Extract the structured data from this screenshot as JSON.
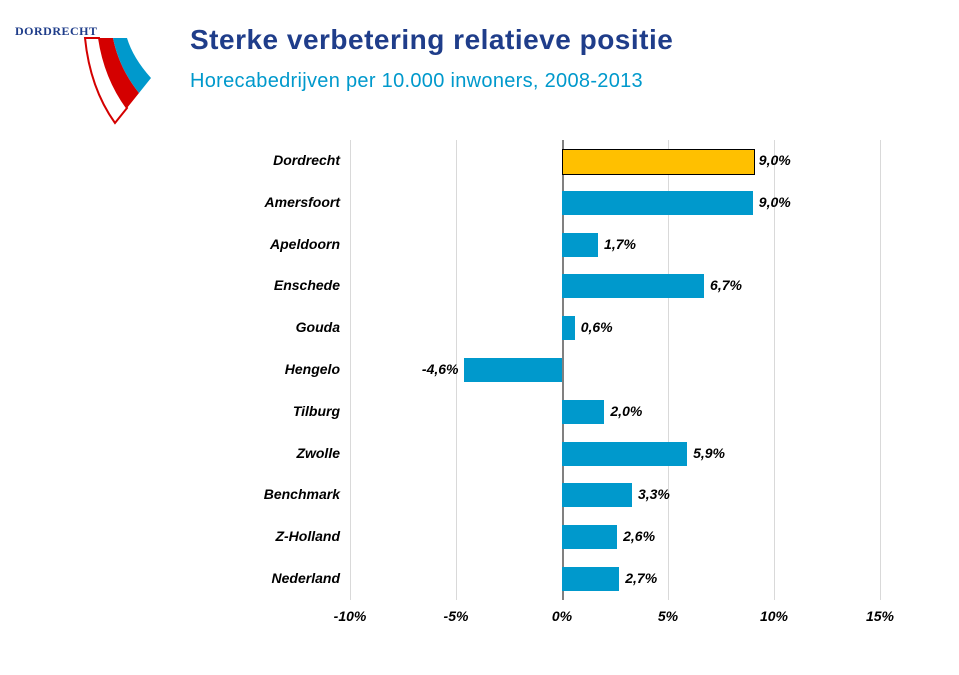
{
  "title": "Sterke verbetering relatieve positie",
  "subtitle": "Horecabedrijven per 10.000 inwoners, 2008-2013",
  "title_color": "#1f3d8a",
  "subtitle_color": "#0099cc",
  "logo_text": "DORDRECHT",
  "logo_text_color": "#1f3d8a",
  "logo_red": "#d40000",
  "logo_blue": "#0099cc",
  "logo_white": "#ffffff",
  "chart": {
    "type": "bar-horizontal",
    "xlim": [
      -10,
      15
    ],
    "ticks": [
      -10,
      -5,
      0,
      5,
      10,
      15
    ],
    "tick_labels": [
      "-10%",
      "-5%",
      "0%",
      "5%",
      "10%",
      "15%"
    ],
    "grid_color": "#d9d9d9",
    "zero_color": "#808080",
    "bar_color_default": "#0099cc",
    "bar_color_highlight": "#ffc000",
    "label_fontsize": 14,
    "categories": [
      {
        "name": "Dordrecht",
        "value": 9.0,
        "label": "9,0%",
        "highlight": true
      },
      {
        "name": "Amersfoort",
        "value": 9.0,
        "label": "9,0%",
        "highlight": false
      },
      {
        "name": "Apeldoorn",
        "value": 1.7,
        "label": "1,7%",
        "highlight": false
      },
      {
        "name": "Enschede",
        "value": 6.7,
        "label": "6,7%",
        "highlight": false
      },
      {
        "name": "Gouda",
        "value": 0.6,
        "label": "0,6%",
        "highlight": false
      },
      {
        "name": "Hengelo",
        "value": -4.6,
        "label": "-4,6%",
        "highlight": false
      },
      {
        "name": "Tilburg",
        "value": 2.0,
        "label": "2,0%",
        "highlight": false
      },
      {
        "name": "Zwolle",
        "value": 5.9,
        "label": "5,9%",
        "highlight": false
      },
      {
        "name": "Benchmark",
        "value": 3.3,
        "label": "3,3%",
        "highlight": false
      },
      {
        "name": "Z-Holland",
        "value": 2.6,
        "label": "2,6%",
        "highlight": false
      },
      {
        "name": "Nederland",
        "value": 2.7,
        "label": "2,7%",
        "highlight": false
      }
    ]
  }
}
